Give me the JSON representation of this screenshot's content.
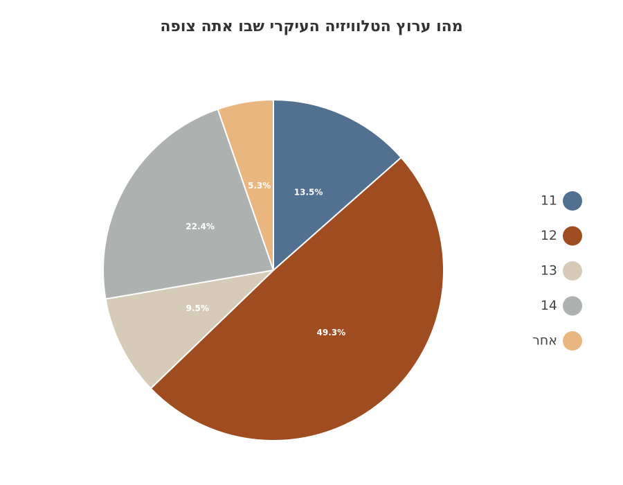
{
  "chart_data": {
    "type": "pie",
    "title": "מהו ערוץ הטלוויזיה העיקרי שבו אתה צופה",
    "categories": [
      "11",
      "12",
      "13",
      "14",
      "אחר"
    ],
    "values": [
      13.5,
      49.3,
      9.5,
      22.4,
      5.3
    ],
    "data_labels": [
      "13.5%",
      "49.3%",
      "9.5%",
      "22.4%",
      "5.3%"
    ],
    "colors": [
      "#52708f",
      "#a04c21",
      "#d6cbb7",
      "#adb1b0",
      "#e9b680"
    ],
    "start_angle": "top",
    "direction": "clockwise",
    "legend_position": "right"
  }
}
